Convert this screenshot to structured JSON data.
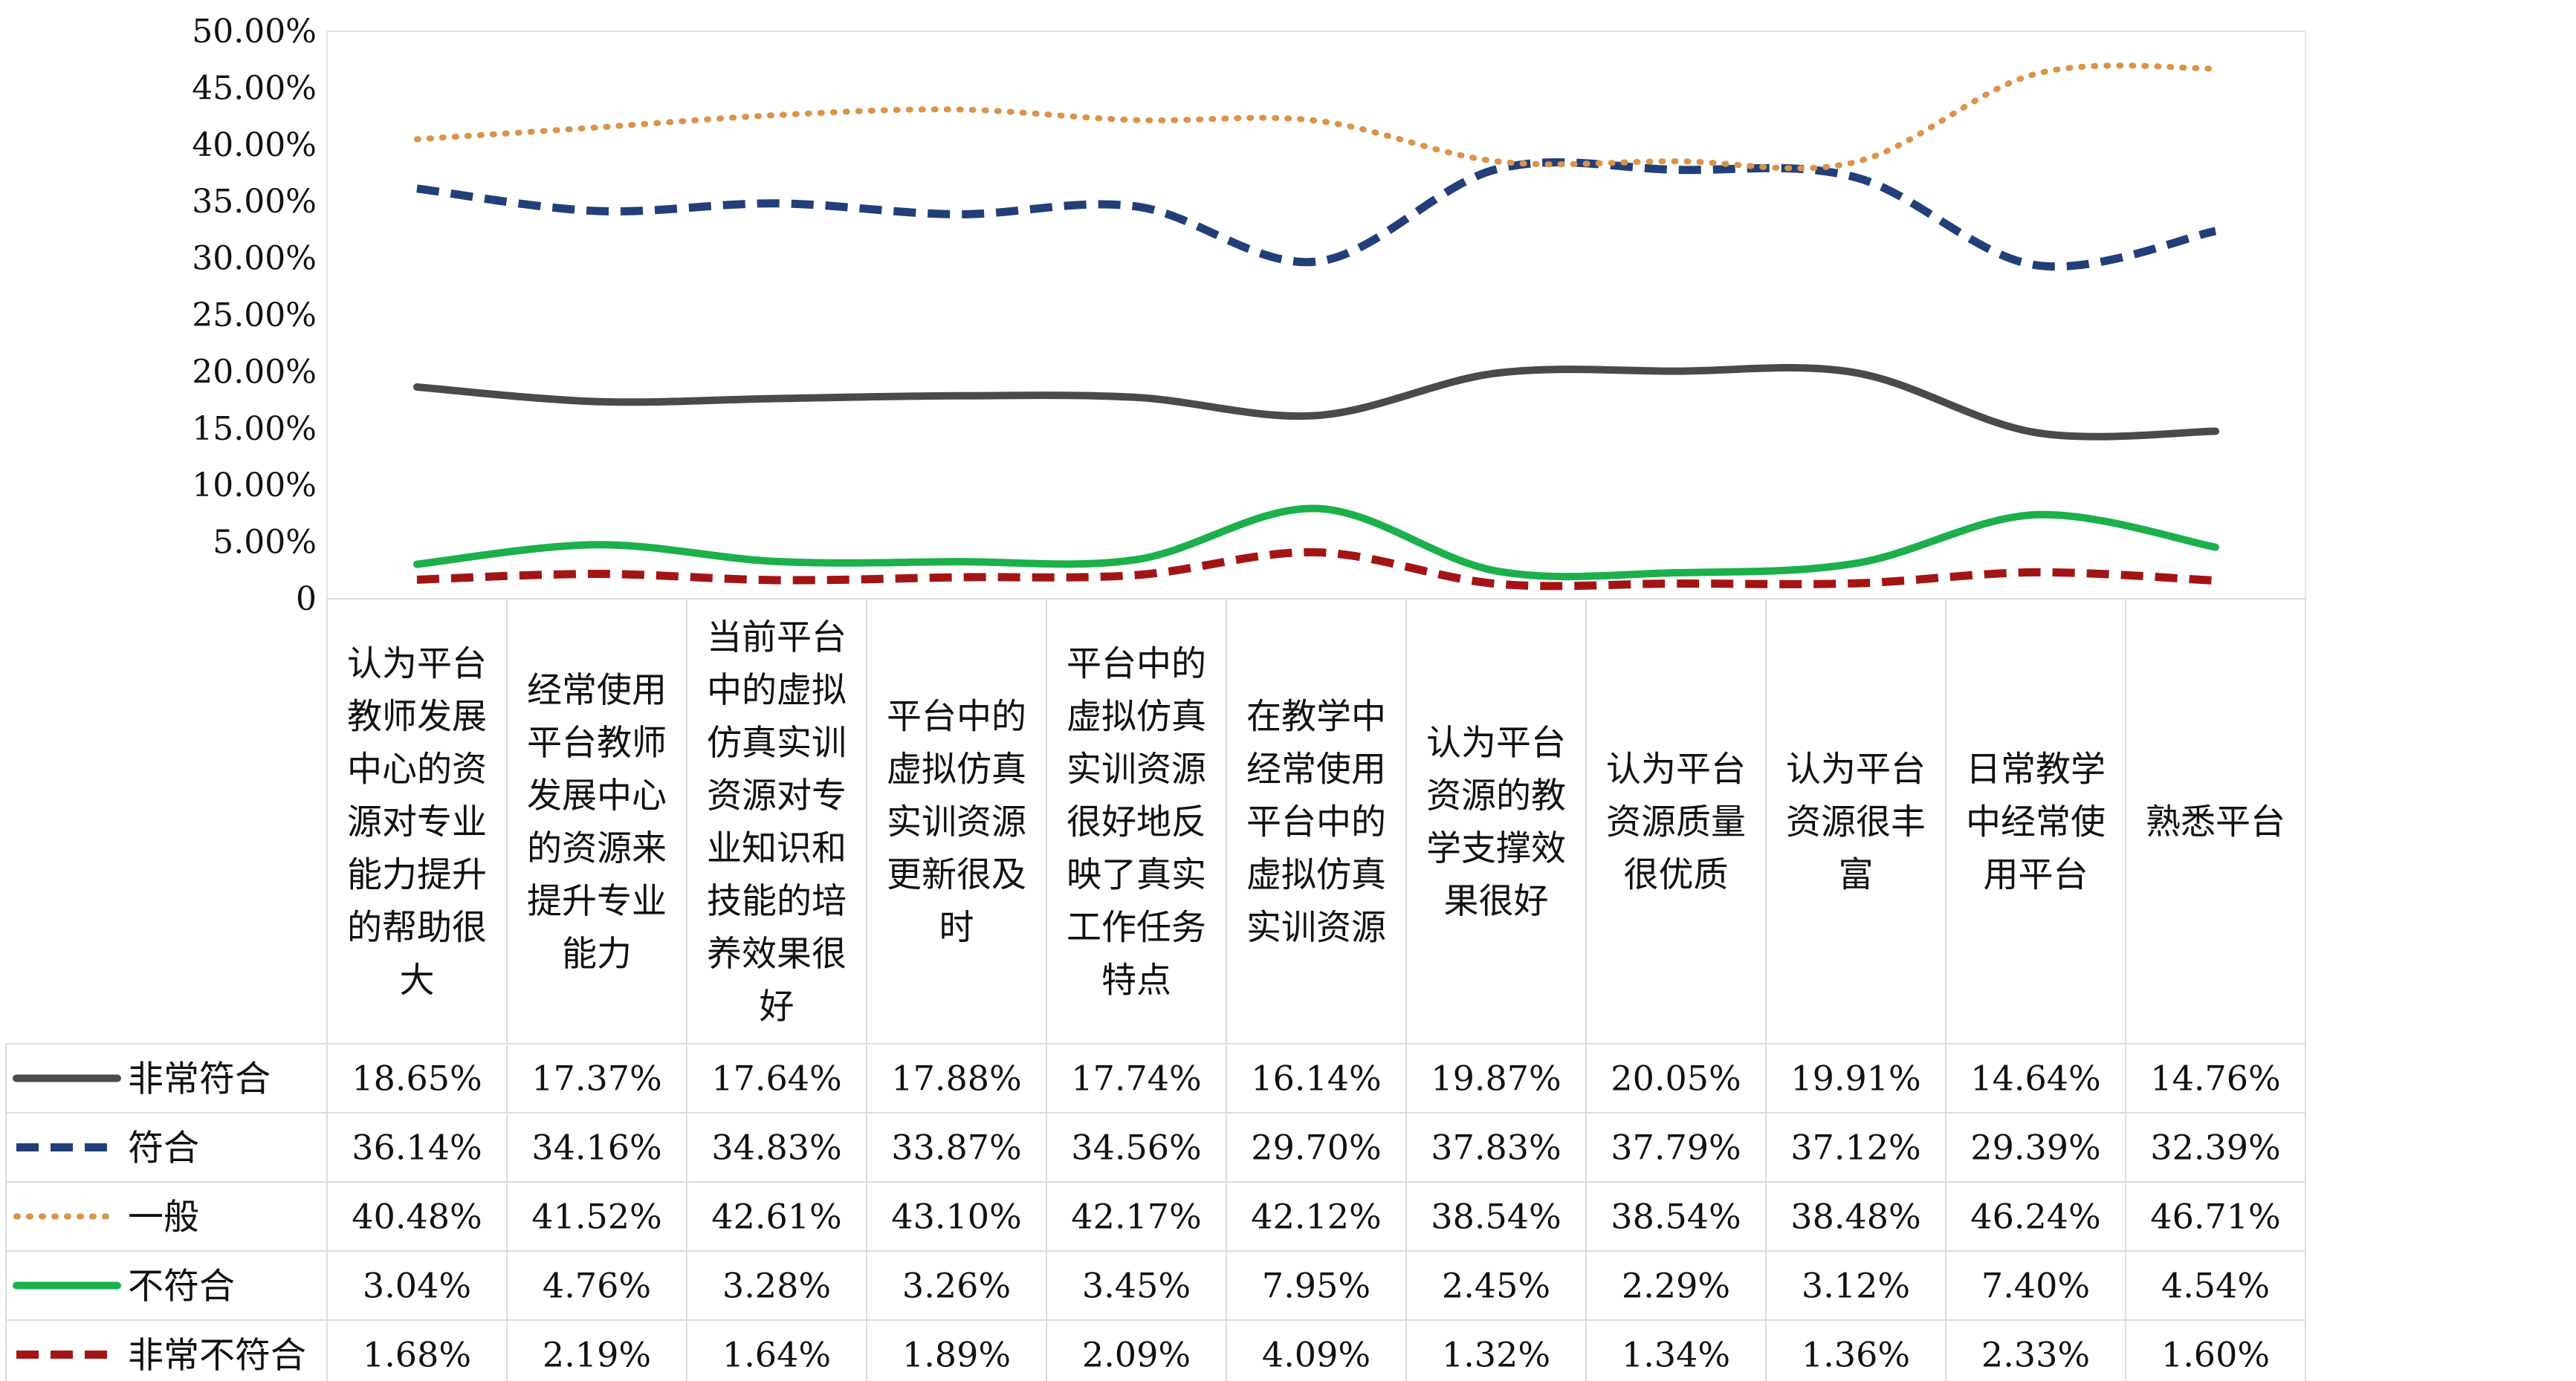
{
  "chart_data": {
    "type": "line",
    "title": "",
    "xlabel": "",
    "ylabel": "",
    "ylim": [
      0,
      0.5
    ],
    "y_ticks": [
      {
        "value": 0.0,
        "label": "0"
      },
      {
        "value": 0.05,
        "label": "5.00%"
      },
      {
        "value": 0.1,
        "label": "10.00%"
      },
      {
        "value": 0.15,
        "label": "15.00%"
      },
      {
        "value": 0.2,
        "label": "20.00%"
      },
      {
        "value": 0.25,
        "label": "25.00%"
      },
      {
        "value": 0.3,
        "label": "30.00%"
      },
      {
        "value": 0.35,
        "label": "35.00%"
      },
      {
        "value": 0.4,
        "label": "40.00%"
      },
      {
        "value": 0.45,
        "label": "45.00%"
      },
      {
        "value": 0.5,
        "label": "50.00%"
      }
    ],
    "categories": [
      "认为平台教师发展中心的资源对专业能力提升的帮助很大",
      "经常使用平台教师发展中心的资源来提升专业能力",
      "当前平台中的虚拟仿真实训资源对专业知识和技能的培养效果很好",
      "平台中的虚拟仿真实训资源更新很及时",
      "平台中的虚拟仿真实训资源很好地反映了真实工作任务特点",
      "在教学中经常使用平台中的虚拟仿真实训资源",
      "认为平台资源的教学支撑效果很好",
      "认为平台资源质量很优质",
      "认为平台资源很丰富",
      "日常教学中经常使用平台",
      "熟悉平台"
    ],
    "category_lines": [
      [
        "认为平台",
        "教师发展",
        "中心的资",
        "源对专业",
        "能力提升",
        "的帮助很",
        "大"
      ],
      [
        "经常使用",
        "平台教师",
        "发展中心",
        "的资源来",
        "提升专业",
        "能力"
      ],
      [
        "当前平台",
        "中的虚拟",
        "仿真实训",
        "资源对专",
        "业知识和",
        "技能的培",
        "养效果很",
        "好"
      ],
      [
        "平台中的",
        "虚拟仿真",
        "实训资源",
        "更新很及",
        "时"
      ],
      [
        "平台中的",
        "虚拟仿真",
        "实训资源",
        "很好地反",
        "映了真实",
        "工作任务",
        "特点"
      ],
      [
        "在教学中",
        "经常使用",
        "平台中的",
        "虚拟仿真",
        "实训资源"
      ],
      [
        "认为平台",
        "资源的教",
        "学支撑效",
        "果很好"
      ],
      [
        "认为平台",
        "资源质量",
        "很优质"
      ],
      [
        "认为平台",
        "资源很丰",
        "富"
      ],
      [
        "日常教学",
        "中经常使",
        "用平台"
      ],
      [
        "熟悉平台"
      ]
    ],
    "series": [
      {
        "name": "非常符合",
        "color": "#4a4a4a",
        "line_style": "solid",
        "values": [
          0.1865,
          0.1737,
          0.1764,
          0.1788,
          0.1774,
          0.1614,
          0.1987,
          0.2005,
          0.1991,
          0.1464,
          0.1476
        ],
        "labels": [
          "18.65%",
          "17.37%",
          "17.64%",
          "17.88%",
          "17.74%",
          "16.14%",
          "19.87%",
          "20.05%",
          "19.91%",
          "14.64%",
          "14.76%"
        ]
      },
      {
        "name": "符合",
        "color": "#233f7a",
        "line_style": "dashed",
        "values": [
          0.3614,
          0.3416,
          0.3483,
          0.3387,
          0.3456,
          0.297,
          0.3783,
          0.3779,
          0.3712,
          0.2939,
          0.3239
        ],
        "labels": [
          "36.14%",
          "34.16%",
          "34.83%",
          "33.87%",
          "34.56%",
          "29.70%",
          "37.83%",
          "37.79%",
          "37.12%",
          "29.39%",
          "32.39%"
        ]
      },
      {
        "name": "一般",
        "color": "#d9944a",
        "line_style": "dotted",
        "values": [
          0.4048,
          0.4152,
          0.4261,
          0.431,
          0.4217,
          0.4212,
          0.3854,
          0.3854,
          0.3848,
          0.4624,
          0.4671
        ],
        "labels": [
          "40.48%",
          "41.52%",
          "42.61%",
          "43.10%",
          "42.17%",
          "42.12%",
          "38.54%",
          "38.54%",
          "38.48%",
          "46.24%",
          "46.71%"
        ]
      },
      {
        "name": "不符合",
        "color": "#1bb04a",
        "line_style": "solid",
        "values": [
          0.0304,
          0.0476,
          0.0328,
          0.0326,
          0.0345,
          0.0795,
          0.0245,
          0.0229,
          0.0312,
          0.074,
          0.0454
        ],
        "labels": [
          "3.04%",
          "4.76%",
          "3.28%",
          "3.26%",
          "3.45%",
          "7.95%",
          "2.45%",
          "2.29%",
          "3.12%",
          "7.40%",
          "4.54%"
        ]
      },
      {
        "name": "非常不符合",
        "color": "#a31515",
        "line_style": "dashed",
        "values": [
          0.0168,
          0.0219,
          0.0164,
          0.0189,
          0.0209,
          0.0409,
          0.0132,
          0.0134,
          0.0136,
          0.0233,
          0.016
        ],
        "labels": [
          "1.68%",
          "2.19%",
          "1.64%",
          "1.89%",
          "2.09%",
          "4.09%",
          "1.32%",
          "1.34%",
          "1.36%",
          "2.33%",
          "1.60%"
        ]
      }
    ],
    "grid": false,
    "legend": "data-table-left"
  }
}
